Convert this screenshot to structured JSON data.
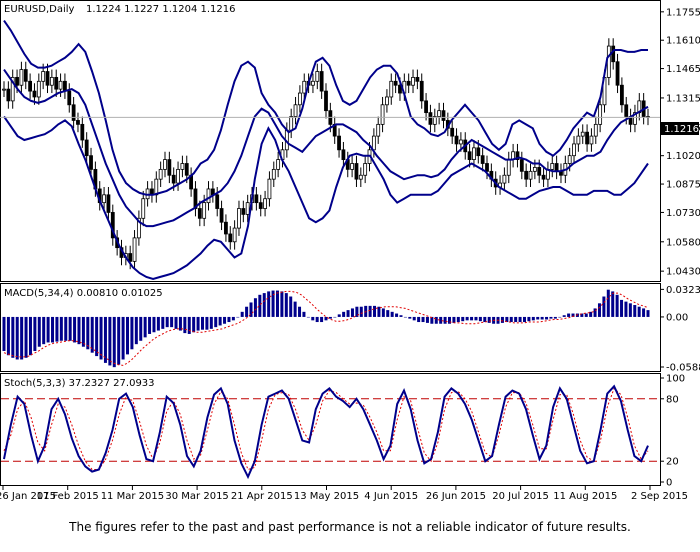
{
  "chart_data": {
    "type": "line",
    "symbol": "EURUSD,Daily",
    "ohlc_values": "1.1224 1.1227 1.1204 1.1216",
    "last_price": "1.1216",
    "x_ticks": [
      "26 Jan 2015",
      "17 Feb 2015",
      "11 Mar 2015",
      "30 Mar 2015",
      "21 Apr 2015",
      "13 May 2015",
      "4 Jun 2015",
      "26 Jun 2015",
      "20 Jul 2015",
      "11 Aug 2015",
      "2 Sep 2015"
    ],
    "price_axis": {
      "ticks": [
        "1.1755",
        "1.1610",
        "1.1465",
        "1.1315",
        "1.1165",
        "1.1020",
        "1.0875",
        "1.0730",
        "1.0580",
        "1.0430"
      ],
      "ylim": [
        1.0395,
        1.1795
      ]
    },
    "price_close": [
      1.136,
      1.13,
      1.142,
      1.138,
      1.146,
      1.14,
      1.135,
      1.132,
      1.14,
      1.145,
      1.138,
      1.142,
      1.136,
      1.14,
      1.135,
      1.128,
      1.12,
      1.118,
      1.11,
      1.102,
      1.095,
      1.085,
      1.078,
      1.082,
      1.073,
      1.06,
      1.055,
      1.05,
      1.052,
      1.048,
      1.06,
      1.07,
      1.08,
      1.085,
      1.082,
      1.09,
      1.095,
      1.1,
      1.092,
      1.088,
      1.095,
      1.098,
      1.092,
      1.085,
      1.075,
      1.07,
      1.078,
      1.085,
      1.082,
      1.075,
      1.068,
      1.062,
      1.058,
      1.065,
      1.075,
      1.072,
      1.078,
      1.082,
      1.078,
      1.075,
      1.08,
      1.09,
      1.095,
      1.1,
      1.105,
      1.115,
      1.122,
      1.128,
      1.134,
      1.14,
      1.138,
      1.14,
      1.145,
      1.135,
      1.125,
      1.118,
      1.112,
      1.105,
      1.1,
      1.095,
      1.098,
      1.09,
      1.092,
      1.098,
      1.105,
      1.112,
      1.118,
      1.128,
      1.132,
      1.14,
      1.138,
      1.134,
      1.14,
      1.138,
      1.142,
      1.14,
      1.13,
      1.124,
      1.118,
      1.122,
      1.125,
      1.12,
      1.116,
      1.112,
      1.108,
      1.11,
      1.104,
      1.1,
      1.106,
      1.102,
      1.098,
      1.094,
      1.09,
      1.086,
      1.088,
      1.092,
      1.1,
      1.104,
      1.1,
      1.094,
      1.09,
      1.094,
      1.096,
      1.092,
      1.09,
      1.095,
      1.098,
      1.094,
      1.092,
      1.098,
      1.102,
      1.108,
      1.112,
      1.114,
      1.108,
      1.112,
      1.118,
      1.128,
      1.142,
      1.158,
      1.15,
      1.138,
      1.128,
      1.122,
      1.118,
      1.124,
      1.13,
      1.122,
      1.1216
    ],
    "bollinger": {
      "upper": [
        1.171,
        1.166,
        1.16,
        1.154,
        1.149,
        1.147,
        1.147,
        1.148,
        1.15,
        1.152,
        1.155,
        1.159,
        1.155,
        1.145,
        1.134,
        1.12,
        1.105,
        1.094,
        1.088,
        1.085,
        1.083,
        1.082,
        1.082,
        1.083,
        1.084,
        1.086,
        1.088,
        1.09,
        1.093,
        1.098,
        1.1,
        1.105,
        1.115,
        1.128,
        1.14,
        1.148,
        1.15,
        1.147,
        1.134,
        1.128,
        1.124,
        1.118,
        1.114,
        1.116,
        1.126,
        1.14,
        1.15,
        1.152,
        1.148,
        1.138,
        1.13,
        1.128,
        1.13,
        1.136,
        1.142,
        1.146,
        1.148,
        1.148,
        1.144,
        1.134,
        1.122,
        1.118,
        1.116,
        1.113,
        1.112,
        1.114,
        1.12,
        1.124,
        1.128,
        1.124,
        1.12,
        1.114,
        1.108,
        1.105,
        1.108,
        1.118,
        1.12,
        1.118,
        1.116,
        1.108,
        1.104,
        1.102,
        1.105,
        1.11,
        1.116,
        1.12,
        1.124,
        1.122,
        1.132,
        1.152,
        1.156,
        1.156,
        1.155,
        1.155,
        1.156,
        1.156
      ],
      "middle": [
        1.146,
        1.141,
        1.136,
        1.132,
        1.13,
        1.129,
        1.13,
        1.132,
        1.134,
        1.135,
        1.136,
        1.134,
        1.128,
        1.118,
        1.108,
        1.098,
        1.09,
        1.082,
        1.076,
        1.072,
        1.068,
        1.066,
        1.066,
        1.067,
        1.068,
        1.069,
        1.071,
        1.073,
        1.075,
        1.078,
        1.08,
        1.082,
        1.084,
        1.088,
        1.094,
        1.102,
        1.112,
        1.122,
        1.126,
        1.124,
        1.118,
        1.112,
        1.108,
        1.106,
        1.104,
        1.108,
        1.112,
        1.114,
        1.116,
        1.118,
        1.118,
        1.116,
        1.114,
        1.11,
        1.107,
        1.102,
        1.098,
        1.094,
        1.092,
        1.09,
        1.091,
        1.092,
        1.092,
        1.091,
        1.092,
        1.095,
        1.1,
        1.104,
        1.107,
        1.11,
        1.108,
        1.106,
        1.104,
        1.102,
        1.1,
        1.1,
        1.101,
        1.1,
        1.098,
        1.098,
        1.095,
        1.094,
        1.094,
        1.095,
        1.098,
        1.1,
        1.102,
        1.102,
        1.104,
        1.11,
        1.115,
        1.119,
        1.121,
        1.123,
        1.125,
        1.127
      ],
      "lower": [
        1.122,
        1.117,
        1.112,
        1.11,
        1.111,
        1.112,
        1.113,
        1.115,
        1.118,
        1.12,
        1.117,
        1.108,
        1.1,
        1.09,
        1.08,
        1.072,
        1.064,
        1.056,
        1.05,
        1.045,
        1.042,
        1.04,
        1.039,
        1.04,
        1.041,
        1.042,
        1.044,
        1.046,
        1.049,
        1.052,
        1.056,
        1.059,
        1.058,
        1.054,
        1.05,
        1.052,
        1.066,
        1.09,
        1.108,
        1.116,
        1.11,
        1.1,
        1.094,
        1.086,
        1.078,
        1.07,
        1.068,
        1.07,
        1.074,
        1.086,
        1.096,
        1.102,
        1.103,
        1.102,
        1.102,
        1.096,
        1.09,
        1.082,
        1.078,
        1.08,
        1.082,
        1.082,
        1.082,
        1.082,
        1.084,
        1.088,
        1.092,
        1.094,
        1.096,
        1.098,
        1.096,
        1.094,
        1.09,
        1.086,
        1.084,
        1.082,
        1.08,
        1.08,
        1.082,
        1.084,
        1.085,
        1.086,
        1.086,
        1.084,
        1.082,
        1.082,
        1.082,
        1.084,
        1.084,
        1.084,
        1.082,
        1.082,
        1.085,
        1.088,
        1.093,
        1.098
      ]
    },
    "macd": {
      "title": "MACD(5,34,4) 0.00810 0.01025",
      "ticks": [
        "0.03239",
        "0.00",
        "-0.05884"
      ],
      "ylim": [
        -0.06,
        0.034
      ],
      "histogram": [
        -0.04,
        -0.045,
        -0.048,
        -0.05,
        -0.05,
        -0.048,
        -0.045,
        -0.04,
        -0.035,
        -0.032,
        -0.03,
        -0.03,
        -0.029,
        -0.028,
        -0.028,
        -0.028,
        -0.03,
        -0.032,
        -0.035,
        -0.038,
        -0.042,
        -0.046,
        -0.05,
        -0.054,
        -0.057,
        -0.059,
        -0.056,
        -0.05,
        -0.044,
        -0.038,
        -0.032,
        -0.028,
        -0.024,
        -0.02,
        -0.018,
        -0.016,
        -0.014,
        -0.012,
        -0.012,
        -0.014,
        -0.016,
        -0.019,
        -0.02,
        -0.018,
        -0.016,
        -0.015,
        -0.015,
        -0.014,
        -0.012,
        -0.01,
        -0.008,
        -0.006,
        -0.004,
        0.0,
        0.006,
        0.012,
        0.017,
        0.022,
        0.026,
        0.028,
        0.03,
        0.031,
        0.031,
        0.03,
        0.028,
        0.024,
        0.018,
        0.012,
        0.006,
        0.0,
        -0.004,
        -0.006,
        -0.006,
        -0.004,
        -0.002,
        0.0,
        0.003,
        0.006,
        0.008,
        0.01,
        0.012,
        0.012,
        0.013,
        0.013,
        0.013,
        0.012,
        0.01,
        0.008,
        0.006,
        0.004,
        0.002,
        0.0,
        -0.002,
        -0.004,
        -0.006,
        -0.006,
        -0.007,
        -0.008,
        -0.008,
        -0.008,
        -0.008,
        -0.008,
        -0.007,
        -0.006,
        -0.005,
        -0.004,
        -0.004,
        -0.004,
        -0.005,
        -0.006,
        -0.007,
        -0.008,
        -0.008,
        -0.007,
        -0.006,
        -0.006,
        -0.006,
        -0.006,
        -0.006,
        -0.005,
        -0.004,
        -0.003,
        -0.003,
        -0.003,
        -0.002,
        -0.002,
        0.0,
        0.002,
        0.004,
        0.004,
        0.004,
        0.004,
        0.004,
        0.006,
        0.01,
        0.016,
        0.024,
        0.032,
        0.03,
        0.026,
        0.02,
        0.018,
        0.016,
        0.014,
        0.012,
        0.01,
        0.008
      ],
      "signal": [
        -0.042,
        -0.044,
        -0.046,
        -0.047,
        -0.047,
        -0.046,
        -0.043,
        -0.04,
        -0.036,
        -0.033,
        -0.031,
        -0.03,
        -0.029,
        -0.028,
        -0.028,
        -0.029,
        -0.031,
        -0.034,
        -0.038,
        -0.042,
        -0.046,
        -0.05,
        -0.054,
        -0.056,
        -0.057,
        -0.054,
        -0.049,
        -0.043,
        -0.037,
        -0.032,
        -0.027,
        -0.023,
        -0.02,
        -0.017,
        -0.015,
        -0.014,
        -0.014,
        -0.015,
        -0.017,
        -0.018,
        -0.018,
        -0.017,
        -0.016,
        -0.015,
        -0.014,
        -0.012,
        -0.01,
        -0.008,
        -0.005,
        -0.001,
        0.004,
        0.01,
        0.016,
        0.021,
        0.025,
        0.028,
        0.029,
        0.03,
        0.03,
        0.029,
        0.026,
        0.021,
        0.016,
        0.01,
        0.005,
        0.0,
        -0.003,
        -0.005,
        -0.005,
        -0.004,
        -0.002,
        0.001,
        0.004,
        0.006,
        0.008,
        0.01,
        0.011,
        0.012,
        0.012,
        0.012,
        0.011,
        0.01,
        0.008,
        0.006,
        0.004,
        0.002,
        0.0,
        -0.002,
        -0.004,
        -0.005,
        -0.006,
        -0.007,
        -0.007,
        -0.008,
        -0.008,
        -0.008,
        -0.007,
        -0.006,
        -0.005,
        -0.004,
        -0.004,
        -0.005,
        -0.006,
        -0.007,
        -0.007,
        -0.007,
        -0.006,
        -0.006,
        -0.006,
        -0.005,
        -0.004,
        -0.003,
        -0.003,
        -0.002,
        -0.001,
        0.001,
        0.003,
        0.004,
        0.005,
        0.006,
        0.01,
        0.016,
        0.023,
        0.028,
        0.028,
        0.025,
        0.021,
        0.018,
        0.015,
        0.013,
        0.011
      ]
    },
    "stoch": {
      "title": "Stoch(5,3,3) 37.2327 27.0933",
      "ticks": [
        "100",
        "80",
        "20",
        "0"
      ],
      "levels": [
        80,
        20
      ],
      "ylim": [
        0,
        100
      ],
      "main": [
        22,
        55,
        82,
        75,
        45,
        20,
        35,
        70,
        80,
        65,
        42,
        25,
        15,
        10,
        12,
        28,
        50,
        80,
        85,
        72,
        45,
        22,
        20,
        48,
        82,
        76,
        55,
        25,
        15,
        30,
        62,
        84,
        90,
        75,
        40,
        18,
        5,
        20,
        55,
        82,
        85,
        88,
        80,
        60,
        40,
        38,
        70,
        85,
        90,
        82,
        78,
        72,
        80,
        70,
        55,
        40,
        22,
        35,
        75,
        88,
        70,
        40,
        18,
        22,
        48,
        82,
        90,
        85,
        75,
        60,
        40,
        20,
        25,
        55,
        82,
        88,
        85,
        70,
        45,
        22,
        35,
        72,
        90,
        80,
        55,
        30,
        18,
        20,
        50,
        85,
        92,
        78,
        50,
        25,
        20,
        35
      ],
      "signal": [
        30,
        45,
        70,
        78,
        62,
        38,
        30,
        55,
        75,
        72,
        55,
        35,
        20,
        12,
        12,
        22,
        40,
        65,
        82,
        78,
        58,
        35,
        22,
        38,
        68,
        78,
        65,
        40,
        22,
        26,
        50,
        75,
        87,
        80,
        55,
        28,
        12,
        14,
        40,
        70,
        84,
        86,
        84,
        70,
        50,
        40,
        55,
        78,
        88,
        86,
        80,
        75,
        76,
        74,
        62,
        48,
        30,
        30,
        60,
        82,
        78,
        52,
        28,
        20,
        38,
        70,
        86,
        87,
        80,
        68,
        48,
        28,
        24,
        45,
        72,
        86,
        86,
        76,
        55,
        32,
        32,
        60,
        84,
        84,
        65,
        40,
        24,
        20,
        40,
        72,
        90,
        84,
        62,
        35,
        22,
        30
      ]
    }
  },
  "disclaimer": "The figures refer to the past and past performance is not a reliable indicator of future results."
}
